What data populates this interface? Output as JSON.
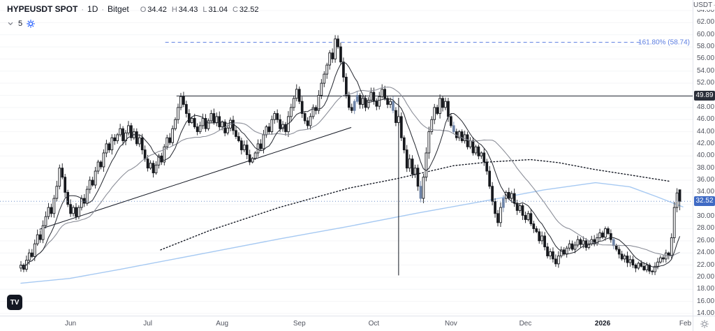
{
  "header": {
    "symbol": "HYPEUSDT SPOT",
    "sep": "·",
    "interval": "1D",
    "exchange": "Bitget",
    "ohlc": {
      "o_label": "O",
      "o": "34.42",
      "h_label": "H",
      "h": "34.43",
      "l_label": "L",
      "l": "31.04",
      "c_label": "C",
      "c": "32.52"
    },
    "legend_count": "5"
  },
  "axis_currency": "USDT",
  "price_labels": {
    "hline": "49.89",
    "last": "32.52"
  },
  "footer": {
    "logo_text": "TV"
  },
  "colors": {
    "up": "#ffffff",
    "down": "#16181d",
    "accent_candle": "#6e84a8",
    "ma_fast": "#23262e",
    "ma_slow": "#8c8f99",
    "ma_dotted": "#131722",
    "ma_long": "#a6c9f2",
    "fib": "#5b7de1",
    "hline": "#2a2e39",
    "last_price_line": "#6f8fc9",
    "grid": "#f4f5f7"
  },
  "chart_data": {
    "type": "candlestick",
    "title": "HYPEUSDT SPOT · 1D · Bitget",
    "symbol": "HYPEUSDT",
    "market": "SPOT",
    "interval": "1D",
    "exchange": "Bitget",
    "last_ohlc": {
      "o": 34.42,
      "h": 34.43,
      "l": 31.04,
      "c": 32.52
    },
    "y_axis": {
      "min": 14,
      "max": 64,
      "step": 2,
      "unit": "USDT"
    },
    "x_ticks": [
      {
        "label": "Jun",
        "index": 18
      },
      {
        "label": "Jul",
        "index": 46
      },
      {
        "label": "Aug",
        "index": 73
      },
      {
        "label": "Sep",
        "index": 101
      },
      {
        "label": "Oct",
        "index": 128
      },
      {
        "label": "Nov",
        "index": 156
      },
      {
        "label": "Dec",
        "index": 183
      },
      {
        "label": "2026",
        "index": 211,
        "year": true
      },
      {
        "label": "Feb",
        "index": 241
      }
    ],
    "first_open": 21.5,
    "closes": [
      22.0,
      21.3,
      22.8,
      24.0,
      23.4,
      25.5,
      27.0,
      26.2,
      28.5,
      30.0,
      31.5,
      30.5,
      33.0,
      35.0,
      38.0,
      36.5,
      34.0,
      32.0,
      30.5,
      31.5,
      30.0,
      31.5,
      33.0,
      32.2,
      34.5,
      36.0,
      35.2,
      37.5,
      39.0,
      38.2,
      40.5,
      42.0,
      41.0,
      43.0,
      42.5,
      43.5,
      44.5,
      42.5,
      43.8,
      45.0,
      43.0,
      44.0,
      42.0,
      43.0,
      41.0,
      39.5,
      38.0,
      38.8,
      37.2,
      38.5,
      40.0,
      39.0,
      41.5,
      43.0,
      42.2,
      44.5,
      46.0,
      48.0,
      49.8,
      48.5,
      47.0,
      45.5,
      46.2,
      44.8,
      44.0,
      45.0,
      46.2,
      44.5,
      45.8,
      47.0,
      45.5,
      46.5,
      44.8,
      45.6,
      43.8,
      44.6,
      45.9,
      44.2,
      43.2,
      42.5,
      41.0,
      41.8,
      40.2,
      39.0,
      39.6,
      40.5,
      42.0,
      41.2,
      43.5,
      44.8,
      44.0,
      46.0,
      47.0,
      46.0,
      44.5,
      45.2,
      44.0,
      46.5,
      48.0,
      49.5,
      51.0,
      49.0,
      47.0,
      45.8,
      45.0,
      46.5,
      48.0,
      47.5,
      50.0,
      52.0,
      53.5,
      55.0,
      57.0,
      56.0,
      59.3,
      58.0,
      55.5,
      53.0,
      50.0,
      48.0,
      47.5,
      49.0,
      50.0,
      48.5,
      49.5,
      48.0,
      49.2,
      50.5,
      49.0,
      48.2,
      49.8,
      51.0,
      49.5,
      48.5,
      49.0,
      47.5,
      45.5,
      46.5,
      43.0,
      41.0,
      38.0,
      39.5,
      37.0,
      38.0,
      35.0,
      33.0,
      36.5,
      40.5,
      44.0,
      46.0,
      48.0,
      47.0,
      49.5,
      48.0,
      49.0,
      46.5,
      45.0,
      44.0,
      43.0,
      44.0,
      42.5,
      43.5,
      41.5,
      42.5,
      40.5,
      41.5,
      40.0,
      40.5,
      39.0,
      37.5,
      35.0,
      32.5,
      30.5,
      29.0,
      31.5,
      33.0,
      34.0,
      33.0,
      33.8,
      32.2,
      31.0,
      31.8,
      30.2,
      29.5,
      30.5,
      28.8,
      28.0,
      27.5,
      26.0,
      26.8,
      25.0,
      23.5,
      24.2,
      23.0,
      22.2,
      23.5,
      24.5,
      23.8,
      24.8,
      25.5,
      24.6,
      25.3,
      26.2,
      25.4,
      26.0,
      24.9,
      25.5,
      26.2,
      25.5,
      26.5,
      27.3,
      26.6,
      28.0,
      27.2,
      26.2,
      25.2,
      24.6,
      23.8,
      23.0,
      23.5,
      22.4,
      22.9,
      22.0,
      21.5,
      22.3,
      21.8,
      21.2,
      22.0,
      21.0,
      20.9,
      21.8,
      22.5,
      23.2,
      23.0,
      24.0,
      23.6,
      26.5,
      31.5,
      33.9,
      32.52
    ],
    "accent_candle_indices": [
      121,
      122,
      135,
      145,
      157,
      175,
      215
    ],
    "overlays": {
      "sma_fast_period": 9,
      "sma_slow_period": 26,
      "dotted_ma_points": [
        [
          0.211,
          24.5
        ],
        [
          0.285,
          27.7
        ],
        [
          0.39,
          31.5
        ],
        [
          0.496,
          34.7
        ],
        [
          0.57,
          36.3
        ],
        [
          0.654,
          38.4
        ],
        [
          0.707,
          39.0
        ],
        [
          0.77,
          39.4
        ],
        [
          0.812,
          38.9
        ],
        [
          0.865,
          37.8
        ],
        [
          0.918,
          36.9
        ],
        [
          0.981,
          35.8
        ]
      ],
      "blue_ma_points": [
        [
          0,
          19.0
        ],
        [
          0.074,
          19.8
        ],
        [
          0.15,
          21.3
        ],
        [
          0.285,
          24.1
        ],
        [
          0.39,
          26.3
        ],
        [
          0.496,
          28.4
        ],
        [
          0.6,
          30.6
        ],
        [
          0.707,
          32.7
        ],
        [
          0.79,
          34.4
        ],
        [
          0.868,
          35.6
        ],
        [
          0.92,
          34.9
        ],
        [
          0.96,
          33.3
        ],
        [
          1.0,
          31.6
        ]
      ]
    },
    "annotations": {
      "fib_extension": {
        "price": 58.74,
        "label": "161.80% (58.74)",
        "x_start_frac": 0.218,
        "x_end_frac": 0.94
      },
      "horizontal_line": {
        "price": 49.89,
        "x_start_frac": 0.235
      },
      "vertical_line": {
        "index": 137,
        "price_top": 49.6,
        "price_bottom": 20.3
      },
      "trendline": {
        "x1_frac": 0.028,
        "price1": 27.9,
        "x2_frac": 0.499,
        "price2": 44.7
      },
      "last_price": 32.52,
      "last_price_direction": "down"
    }
  }
}
